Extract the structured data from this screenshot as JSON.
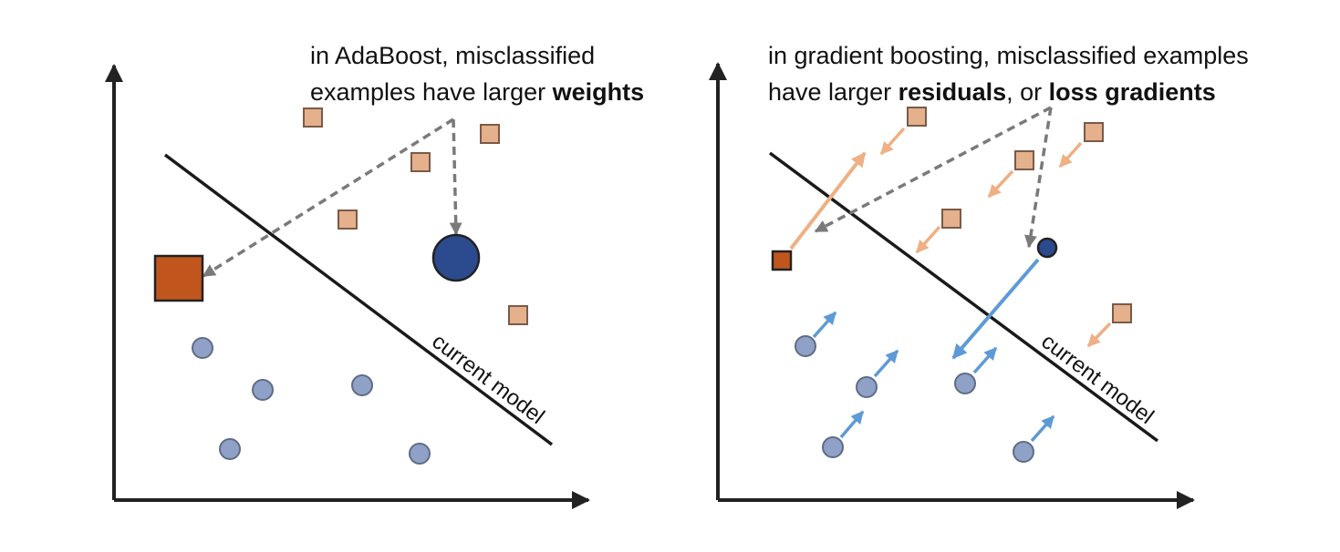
{
  "panels": [
    {
      "caption_lines": [
        [
          {
            "text": "in AdaBoost, misclassified",
            "bold": false
          }
        ],
        [
          {
            "text": "examples have larger ",
            "bold": false
          },
          {
            "text": "weights",
            "bold": true
          }
        ]
      ],
      "boundary_label": "current model"
    },
    {
      "caption_lines": [
        [
          {
            "text": "in gradient boosting, misclassified examples",
            "bold": false
          }
        ],
        [
          {
            "text": "have larger ",
            "bold": false
          },
          {
            "text": "residuals",
            "bold": true
          },
          {
            "text": ", or ",
            "bold": false
          },
          {
            "text": "loss gradients",
            "bold": true
          }
        ]
      ],
      "boundary_label": "current model"
    }
  ],
  "colors": {
    "axis": "#222222",
    "boundary": "#1a1a1a",
    "square_fill": "#e5b08c",
    "square_stroke": "#7a5a48",
    "square_misclassified_fill": "#c0561e",
    "circle_fill": "#8fa1c6",
    "circle_stroke": "#5f6c86",
    "circle_misclassified_fill": "#2c4a8e",
    "pointer_arrow": "#7a7a7a",
    "gradient_orange": "#eeb084",
    "gradient_blue": "#5e9ad6"
  }
}
